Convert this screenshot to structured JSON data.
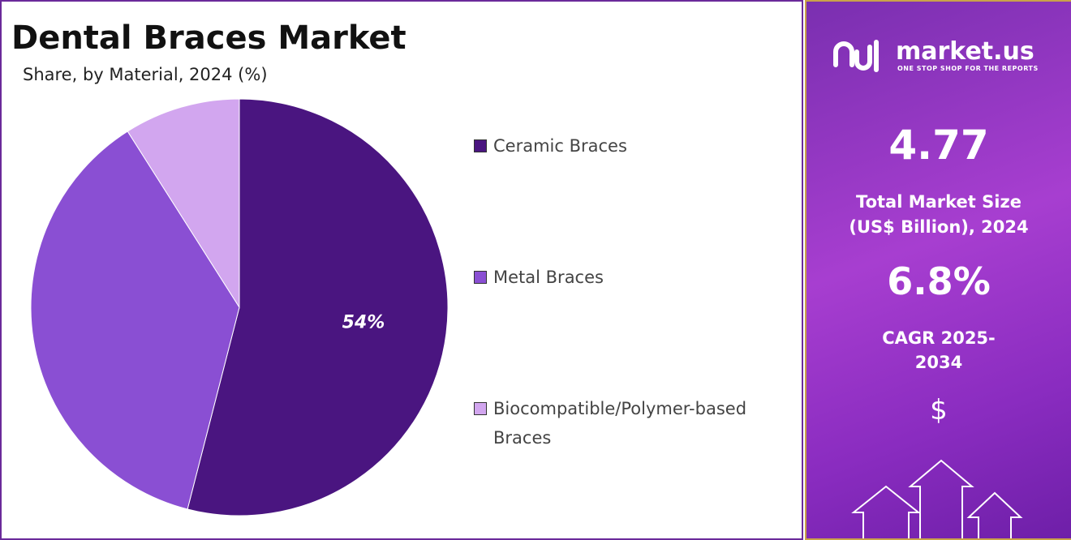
{
  "chart_data": {
    "type": "pie",
    "title": "Dental Braces Market",
    "subtitle": "Share, by Material, 2024 (%)",
    "categories": [
      "Ceramic Braces",
      "Metal Braces",
      "Biocompatible/Polymer-based Braces"
    ],
    "values": [
      54,
      37,
      9
    ],
    "value_labels": [
      "54%",
      null,
      null
    ],
    "colors": [
      "#4a1580",
      "#8a4fd3",
      "#d2a6ef"
    ]
  },
  "panel": {
    "brand": "market.us",
    "tagline": "ONE STOP SHOP FOR THE REPORTS",
    "market_size": "4.77",
    "market_size_label": "Total Market Size (US$ Billion), 2024",
    "cagr": "6.8%",
    "cagr_label": "CAGR 2025-2034",
    "currency": "$"
  }
}
